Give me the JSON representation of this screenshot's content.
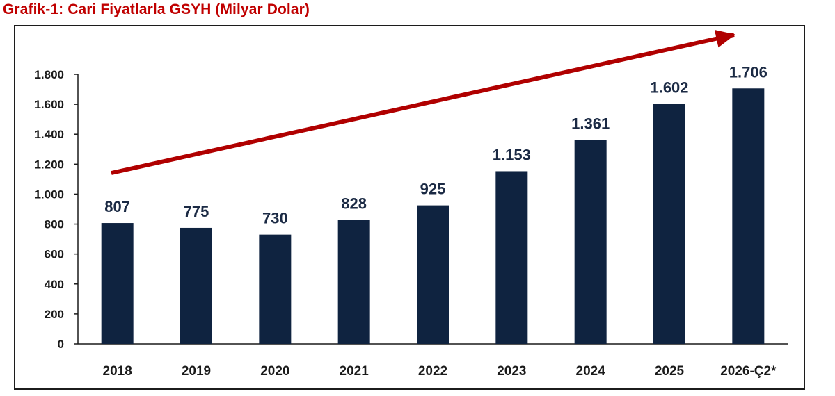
{
  "title": "Grafik-1: Cari Fiyatlarla GSYH (Milyar Dolar)",
  "colors": {
    "title": "#c00000",
    "bar": "#0f2340",
    "arrow": "#b00000",
    "axis": "#1a1a1a",
    "data_label": "#1b2a44"
  },
  "chart_data": {
    "type": "bar",
    "categories": [
      "2018",
      "2019",
      "2020",
      "2021",
      "2022",
      "2023",
      "2024",
      "2025",
      "2026-Ç2*"
    ],
    "values": [
      807,
      775,
      730,
      828,
      925,
      1153,
      1361,
      1602,
      1706
    ],
    "data_labels": [
      "807",
      "775",
      "730",
      "828",
      "925",
      "1.153",
      "1.361",
      "1.602",
      "1.706"
    ],
    "yticks": [
      0,
      200,
      400,
      600,
      800,
      1000,
      1200,
      1400,
      1600,
      1800
    ],
    "ytick_labels": [
      "0",
      "200",
      "400",
      "600",
      "800",
      "1.000",
      "1.200",
      "1.400",
      "1.600",
      "1.800"
    ],
    "ylim": [
      0,
      1800
    ],
    "grid": false,
    "legend": "none",
    "annotations": [
      {
        "type": "trend-arrow",
        "direction": "up-right"
      }
    ]
  }
}
